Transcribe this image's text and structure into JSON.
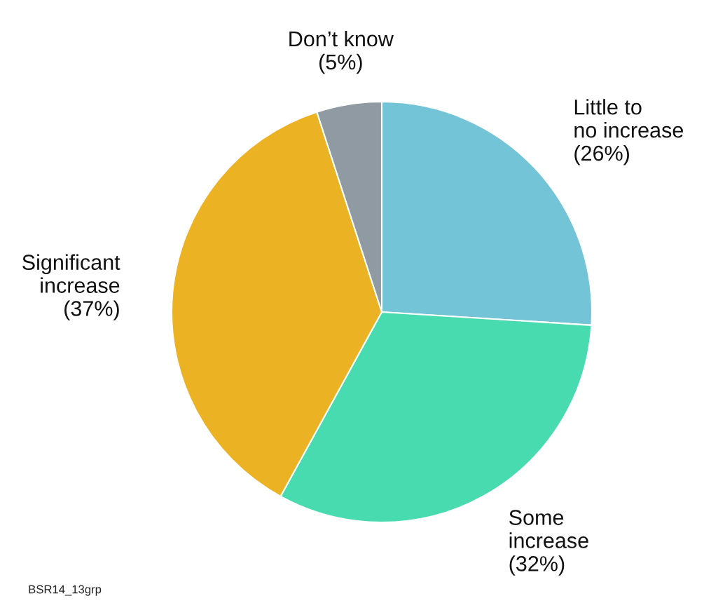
{
  "chart_data": {
    "type": "pie",
    "categories": [
      "Little to\nno increase",
      "Some\nincrease",
      "Significant\nincrease",
      "Don’t know"
    ],
    "values": [
      26,
      32,
      37,
      5
    ],
    "colors": [
      "#72c4d6",
      "#48dbb0",
      "#ebb223",
      "#8f9aa3"
    ],
    "value_labels": [
      "(26%)",
      "(32%)",
      "(37%)",
      "(5%)"
    ],
    "annotations": [
      "BSR14_13grp"
    ]
  }
}
